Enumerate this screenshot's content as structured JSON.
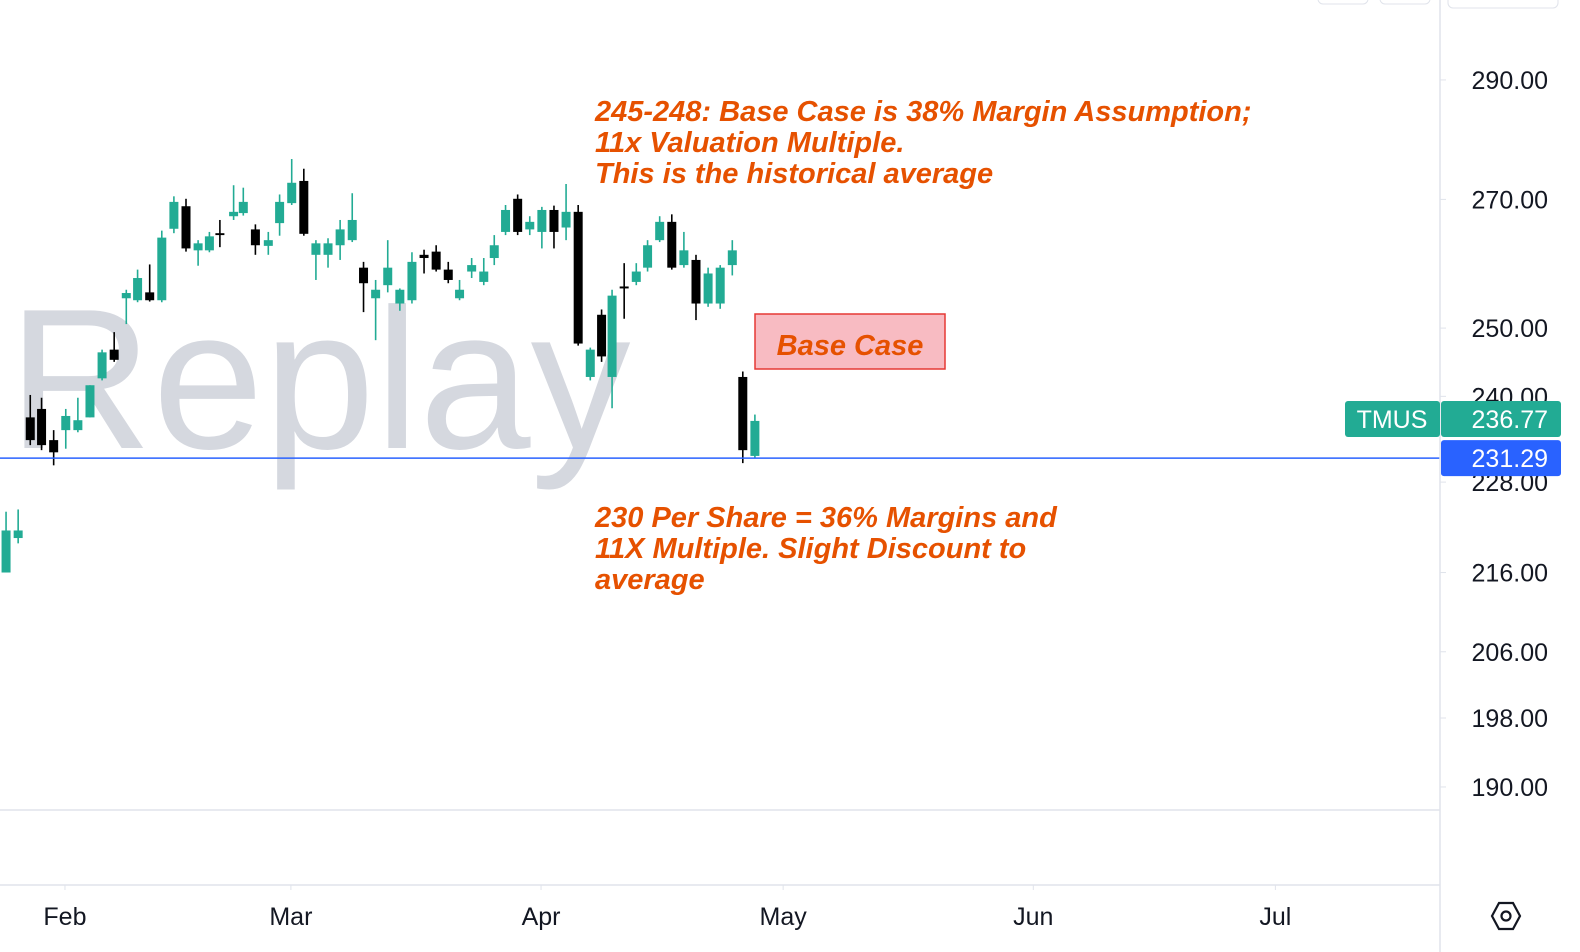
{
  "chart_data": {
    "type": "candlestick",
    "watermark": "Replay",
    "symbol": "TMUS",
    "last_price": 236.77,
    "price_line": {
      "value": 231.29,
      "color": "#2962ff"
    },
    "up_color": "#22ab94",
    "down_color": "#000000",
    "log_scale": true,
    "ylim": [
      187.4,
      304.2
    ],
    "yticks": [
      {
        "value": 190,
        "label": "190.00"
      },
      {
        "value": 198,
        "label": "198.00"
      },
      {
        "value": 206,
        "label": "206.00"
      },
      {
        "value": 216,
        "label": "216.00"
      },
      {
        "value": 228,
        "label": "228.00"
      },
      {
        "value": 240,
        "label": "240.00"
      },
      {
        "value": 250,
        "label": "250.00"
      },
      {
        "value": 270,
        "label": "270.00"
      },
      {
        "value": 290,
        "label": "290.00"
      }
    ],
    "xlim": [
      -8.05,
      170.4
    ],
    "xticks": [
      {
        "value": 0,
        "label": "Feb"
      },
      {
        "value": 28,
        "label": "Mar"
      },
      {
        "value": 59,
        "label": "Apr"
      },
      {
        "value": 89,
        "label": "May"
      },
      {
        "value": 120,
        "label": "Jun"
      },
      {
        "value": 150,
        "label": "Jul"
      }
    ],
    "x": [
      -7.3,
      -5.8,
      -4.3,
      -2.9,
      -1.4,
      0.1,
      1.6,
      3.1,
      4.6,
      6.1,
      7.6,
      9.0,
      10.5,
      12.0,
      13.5,
      15.0,
      16.5,
      17.9,
      19.2,
      20.9,
      22.1,
      23.6,
      25.2,
      26.6,
      28.1,
      29.6,
      31.1,
      32.6,
      34.1,
      35.6,
      37.0,
      38.5,
      40.0,
      41.5,
      43.0,
      44.5,
      46.0,
      47.5,
      48.9,
      50.4,
      51.9,
      53.2,
      54.6,
      56.1,
      57.6,
      59.1,
      60.6,
      62.1,
      63.6,
      65.1,
      66.5,
      67.8,
      69.3,
      70.8,
      72.2,
      73.7,
      75.2,
      76.7,
      78.2,
      79.7,
      81.2,
      82.7,
      84.0,
      85.5
    ],
    "open": [
      216.0,
      220.5,
      237.0,
      238.2,
      233.8,
      235.2,
      235.2,
      237.0,
      242.6,
      246.8,
      254.5,
      254.2,
      255.4,
      254.2,
      265.3,
      268.9,
      261.9,
      261.9,
      264.6,
      267.3,
      267.8,
      265.2,
      262.6,
      266.2,
      269.4,
      273.0,
      261.2,
      261.2,
      262.7,
      263.5,
      259.2,
      254.5,
      256.5,
      253.7,
      254.2,
      261.2,
      261.7,
      258.9,
      254.5,
      258.6,
      257.0,
      260.7,
      264.8,
      270.1,
      265.2,
      264.8,
      268.3,
      265.5,
      268.0,
      242.8,
      252.0,
      242.8,
      256.3,
      257.0,
      259.2,
      263.5,
      266.4,
      259.6,
      260.4,
      253.7,
      253.7,
      259.6,
      242.8,
      231.6
    ],
    "high": [
      224.0,
      224.3,
      240.2,
      239.8,
      235.2,
      238.2,
      239.8,
      241.6,
      246.8,
      249.4,
      255.8,
      258.9,
      259.7,
      265.0,
      270.5,
      270.1,
      263.5,
      264.8,
      266.7,
      272.3,
      271.9,
      266.0,
      264.8,
      270.8,
      276.6,
      275.0,
      263.5,
      263.8,
      266.7,
      271.0,
      260.1,
      257.3,
      263.5,
      256.0,
      261.6,
      262.0,
      262.7,
      260.1,
      257.3,
      260.7,
      260.7,
      264.3,
      269.1,
      270.8,
      267.3,
      268.8,
      269.0,
      272.5,
      269.1,
      247.1,
      252.8,
      255.8,
      259.9,
      259.9,
      263.5,
      267.3,
      267.6,
      264.8,
      261.2,
      259.2,
      259.6,
      263.5,
      243.6,
      237.4
    ],
    "low": [
      216.0,
      219.8,
      233.1,
      232.4,
      230.3,
      232.6,
      234.9,
      237.0,
      242.3,
      245.0,
      250.6,
      253.9,
      254.0,
      253.9,
      264.6,
      261.7,
      259.5,
      261.6,
      262.4,
      266.7,
      267.4,
      261.2,
      261.2,
      264.2,
      269.1,
      264.2,
      257.3,
      259.2,
      260.4,
      263.2,
      252.4,
      248.2,
      255.4,
      252.6,
      253.7,
      258.3,
      258.6,
      256.8,
      254.2,
      257.6,
      256.5,
      259.6,
      264.3,
      264.3,
      264.3,
      262.2,
      262.2,
      263.5,
      247.4,
      242.3,
      245.0,
      238.3,
      251.4,
      256.5,
      258.6,
      263.2,
      258.9,
      259.2,
      251.2,
      253.2,
      252.9,
      258.0,
      230.6,
      231.3
    ],
    "close": [
      221.5,
      221.5,
      233.8,
      233.1,
      232.1,
      237.2,
      236.6,
      241.6,
      246.4,
      245.3,
      255.3,
      257.6,
      254.2,
      263.9,
      269.6,
      262.2,
      263.0,
      264.1,
      264.3,
      268.0,
      269.6,
      262.7,
      263.5,
      269.6,
      272.7,
      264.5,
      263.0,
      263.0,
      265.2,
      266.7,
      256.8,
      255.8,
      259.2,
      255.8,
      260.1,
      260.7,
      258.9,
      257.3,
      255.8,
      259.6,
      258.6,
      262.7,
      268.3,
      264.8,
      266.4,
      268.3,
      264.8,
      268.0,
      247.7,
      246.8,
      245.8,
      254.9,
      256.0,
      258.6,
      262.7,
      266.4,
      259.2,
      261.9,
      253.7,
      258.3,
      259.2,
      261.9,
      232.4,
      236.5
    ],
    "annotations": [
      [
        "245-248: Base Case is 38% Margin Assumption;",
        "11x Valuation Multiple.",
        "This is the historical average"
      ],
      [
        "230 Per Share = 36% Margins and",
        "11X Multiple. Slight Discount to",
        "average"
      ]
    ],
    "callout": "Base Case"
  }
}
